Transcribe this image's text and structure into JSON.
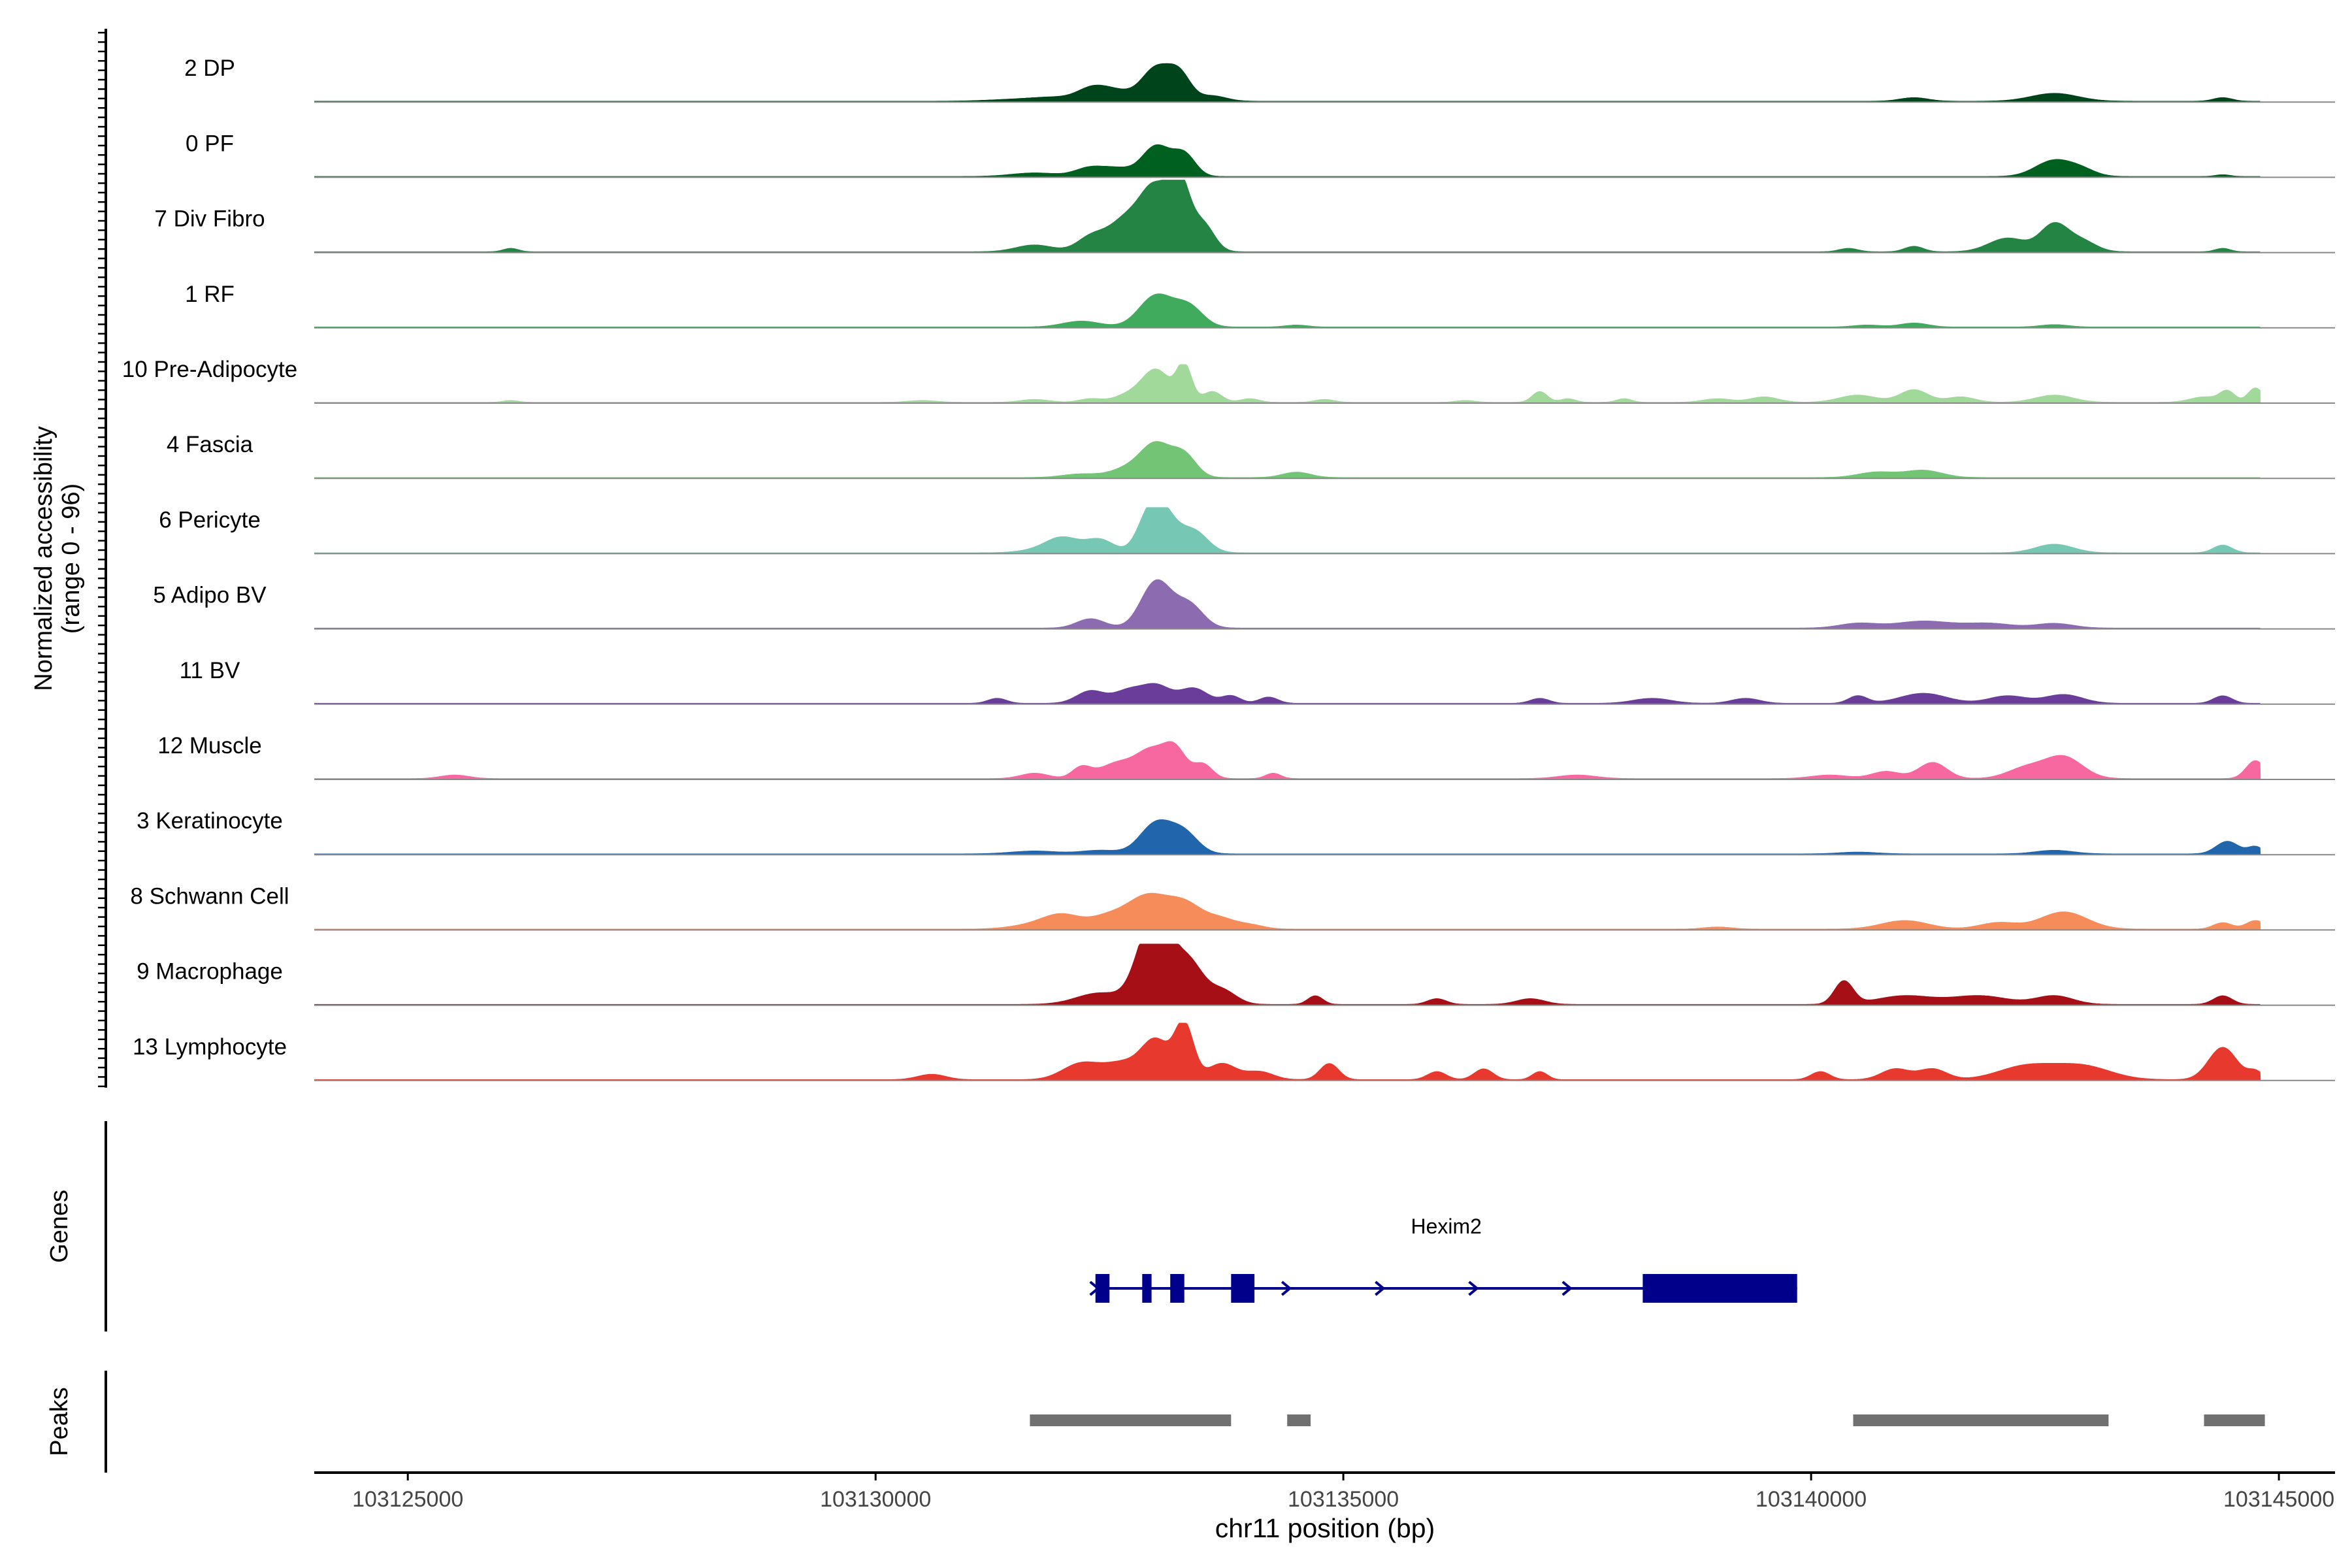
{
  "chart_data": {
    "type": "area",
    "title": "",
    "ylabel_line1": "Normalized accessibility",
    "ylabel_line2": "(range 0 - 96)",
    "y_range": [
      0,
      96
    ],
    "xlabel": "chr11 position (bp)",
    "x_range": [
      103124000,
      103145600
    ],
    "track_x_range": [
      103124000,
      103144800
    ],
    "x_ticks": [
      103125000,
      103130000,
      103135000,
      103140000,
      103145000
    ],
    "x_tick_labels": [
      "103125000",
      "103130000",
      "103135000",
      "103140000",
      "103145000"
    ],
    "series": [
      {
        "name": "2 DP",
        "color": "#00441b",
        "height": 0.5,
        "peaks": [
          [
            103131500,
            300,
            0.05
          ],
          [
            103131950,
            250,
            0.1
          ],
          [
            103132300,
            150,
            0.25
          ],
          [
            103132550,
            200,
            0.3
          ],
          [
            103133000,
            150,
            0.9
          ],
          [
            103133250,
            120,
            0.7
          ],
          [
            103133600,
            150,
            0.15
          ],
          [
            103141100,
            150,
            0.1
          ],
          [
            103142600,
            250,
            0.22
          ],
          [
            103144400,
            100,
            0.1
          ]
        ]
      },
      {
        "name": "0 PF",
        "color": "#00601f",
        "height": 0.5,
        "peaks": [
          [
            103131700,
            250,
            0.1
          ],
          [
            103132300,
            160,
            0.25
          ],
          [
            103132600,
            150,
            0.2
          ],
          [
            103133000,
            150,
            0.85
          ],
          [
            103133300,
            120,
            0.6
          ],
          [
            103142600,
            200,
            0.45
          ],
          [
            103142900,
            150,
            0.15
          ],
          [
            103144400,
            80,
            0.05
          ]
        ]
      },
      {
        "name": "7 Div Fibro",
        "color": "#238443",
        "height": 0.95,
        "peaks": [
          [
            103126100,
            80,
            0.05
          ],
          [
            103131700,
            200,
            0.1
          ],
          [
            103132300,
            150,
            0.2
          ],
          [
            103132700,
            200,
            0.5
          ],
          [
            103133000,
            150,
            0.8
          ],
          [
            103133250,
            110,
            0.95
          ],
          [
            103133500,
            120,
            0.4
          ],
          [
            103140400,
            100,
            0.05
          ],
          [
            103141100,
            100,
            0.08
          ],
          [
            103142100,
            200,
            0.2
          ],
          [
            103142600,
            150,
            0.4
          ],
          [
            103142900,
            150,
            0.15
          ],
          [
            103144400,
            80,
            0.05
          ]
        ]
      },
      {
        "name": "1 RF",
        "color": "#41ab5d",
        "height": 0.55,
        "peaks": [
          [
            103132200,
            200,
            0.15
          ],
          [
            103133000,
            180,
            0.8
          ],
          [
            103133350,
            150,
            0.5
          ],
          [
            103134500,
            120,
            0.05
          ],
          [
            103140600,
            150,
            0.05
          ],
          [
            103141100,
            150,
            0.1
          ],
          [
            103142600,
            150,
            0.06
          ]
        ]
      },
      {
        "name": "10 Pre-Adipocyte",
        "color": "#a1d99b",
        "height": 0.5,
        "peaks": [
          [
            103126100,
            80,
            0.05
          ],
          [
            103130500,
            150,
            0.05
          ],
          [
            103131700,
            150,
            0.08
          ],
          [
            103132300,
            120,
            0.1
          ],
          [
            103132700,
            150,
            0.2
          ],
          [
            103133000,
            150,
            0.9
          ],
          [
            103133300,
            80,
            1.0
          ],
          [
            103133600,
            100,
            0.3
          ],
          [
            103134000,
            100,
            0.1
          ],
          [
            103134800,
            100,
            0.08
          ],
          [
            103136300,
            100,
            0.05
          ],
          [
            103137100,
            80,
            0.3
          ],
          [
            103137400,
            80,
            0.1
          ],
          [
            103138000,
            80,
            0.1
          ],
          [
            103139000,
            150,
            0.1
          ],
          [
            103139500,
            150,
            0.15
          ],
          [
            103140500,
            200,
            0.2
          ],
          [
            103141100,
            150,
            0.35
          ],
          [
            103141600,
            150,
            0.15
          ],
          [
            103142600,
            200,
            0.2
          ],
          [
            103144200,
            150,
            0.15
          ],
          [
            103144450,
            80,
            0.3
          ],
          [
            103144750,
            80,
            0.4
          ]
        ]
      },
      {
        "name": "4 Fascia",
        "color": "#74c476",
        "height": 0.5,
        "peaks": [
          [
            103132200,
            200,
            0.1
          ],
          [
            103132700,
            180,
            0.25
          ],
          [
            103133000,
            160,
            0.9
          ],
          [
            103133300,
            130,
            0.6
          ],
          [
            103134500,
            150,
            0.15
          ],
          [
            103140700,
            200,
            0.15
          ],
          [
            103141200,
            200,
            0.2
          ]
        ]
      },
      {
        "name": "6 Pericyte",
        "color": "#76c8b4",
        "height": 0.6,
        "peaks": [
          [
            103131700,
            200,
            0.05
          ],
          [
            103132000,
            180,
            0.35
          ],
          [
            103132400,
            150,
            0.3
          ],
          [
            103132900,
            120,
            0.45
          ],
          [
            103133050,
            150,
            1.0
          ],
          [
            103133400,
            150,
            0.5
          ],
          [
            103142600,
            200,
            0.2
          ],
          [
            103144400,
            100,
            0.18
          ]
        ]
      },
      {
        "name": "5 Adipo BV",
        "color": "#8c6bb1",
        "height": 0.65,
        "peaks": [
          [
            103132300,
            150,
            0.2
          ],
          [
            103133000,
            160,
            1.0
          ],
          [
            103133350,
            150,
            0.5
          ],
          [
            103140500,
            200,
            0.1
          ],
          [
            103141200,
            300,
            0.15
          ],
          [
            103141900,
            250,
            0.1
          ],
          [
            103142600,
            200,
            0.1
          ]
        ]
      },
      {
        "name": "11 BV",
        "color": "#6a3d9a",
        "height": 0.35,
        "peaks": [
          [
            103131300,
            100,
            0.2
          ],
          [
            103132300,
            150,
            0.5
          ],
          [
            103132700,
            150,
            0.5
          ],
          [
            103133000,
            150,
            0.7
          ],
          [
            103133400,
            150,
            0.6
          ],
          [
            103133800,
            100,
            0.3
          ],
          [
            103134200,
            100,
            0.25
          ],
          [
            103137100,
            100,
            0.2
          ],
          [
            103138300,
            200,
            0.2
          ],
          [
            103139300,
            150,
            0.2
          ],
          [
            103140500,
            100,
            0.3
          ],
          [
            103141200,
            250,
            0.4
          ],
          [
            103142100,
            200,
            0.3
          ],
          [
            103142700,
            200,
            0.35
          ],
          [
            103144400,
            100,
            0.3
          ]
        ]
      },
      {
        "name": "12 Muscle",
        "color": "#f768a1",
        "height": 0.5,
        "peaks": [
          [
            103125500,
            150,
            0.1
          ],
          [
            103131700,
            150,
            0.15
          ],
          [
            103132200,
            100,
            0.3
          ],
          [
            103132600,
            200,
            0.45
          ],
          [
            103132950,
            150,
            0.7
          ],
          [
            103133200,
            120,
            0.8
          ],
          [
            103133500,
            100,
            0.4
          ],
          [
            103134250,
            80,
            0.15
          ],
          [
            103137500,
            200,
            0.1
          ],
          [
            103140200,
            200,
            0.1
          ],
          [
            103140800,
            150,
            0.2
          ],
          [
            103141300,
            150,
            0.45
          ],
          [
            103142300,
            200,
            0.3
          ],
          [
            103142700,
            200,
            0.6
          ],
          [
            103144750,
            100,
            0.5
          ]
        ]
      },
      {
        "name": "3 Keratinocyte",
        "color": "#2166ac",
        "height": 0.5,
        "peaks": [
          [
            103131700,
            250,
            0.08
          ],
          [
            103132400,
            200,
            0.1
          ],
          [
            103133000,
            170,
            0.85
          ],
          [
            103133300,
            150,
            0.55
          ],
          [
            103140500,
            200,
            0.05
          ],
          [
            103142600,
            200,
            0.1
          ],
          [
            103144450,
            120,
            0.35
          ],
          [
            103144750,
            80,
            0.2
          ]
        ]
      },
      {
        "name": "8 Schwann Cell",
        "color": "#f58c5a",
        "height": 0.6,
        "peaks": [
          [
            103131700,
            250,
            0.1
          ],
          [
            103132000,
            200,
            0.3
          ],
          [
            103132500,
            200,
            0.3
          ],
          [
            103132900,
            200,
            0.7
          ],
          [
            103133300,
            200,
            0.6
          ],
          [
            103133700,
            150,
            0.2
          ],
          [
            103134000,
            150,
            0.1
          ],
          [
            103139000,
            150,
            0.05
          ],
          [
            103141000,
            250,
            0.2
          ],
          [
            103142000,
            200,
            0.15
          ],
          [
            103142700,
            250,
            0.4
          ],
          [
            103144400,
            100,
            0.15
          ],
          [
            103144750,
            100,
            0.2
          ]
        ]
      },
      {
        "name": "9 Macrophage",
        "color": "#a50f15",
        "height": 0.8,
        "peaks": [
          [
            103132400,
            250,
            0.2
          ],
          [
            103132900,
            150,
            0.8
          ],
          [
            103133050,
            150,
            1.0
          ],
          [
            103133350,
            150,
            0.7
          ],
          [
            103133700,
            150,
            0.25
          ],
          [
            103134700,
            80,
            0.15
          ],
          [
            103136000,
            100,
            0.1
          ],
          [
            103137000,
            150,
            0.1
          ],
          [
            103140350,
            100,
            0.4
          ],
          [
            103141000,
            300,
            0.15
          ],
          [
            103141800,
            300,
            0.15
          ],
          [
            103142600,
            200,
            0.15
          ],
          [
            103144400,
            100,
            0.15
          ]
        ]
      },
      {
        "name": "13 Lymphocyte",
        "color": "#e8392e",
        "height": 0.75,
        "peaks": [
          [
            103130600,
            150,
            0.1
          ],
          [
            103132200,
            200,
            0.3
          ],
          [
            103132650,
            200,
            0.3
          ],
          [
            103133000,
            150,
            0.7
          ],
          [
            103133300,
            100,
            1.0
          ],
          [
            103133700,
            150,
            0.3
          ],
          [
            103134100,
            150,
            0.15
          ],
          [
            103134850,
            100,
            0.3
          ],
          [
            103136000,
            100,
            0.15
          ],
          [
            103136500,
            100,
            0.2
          ],
          [
            103137100,
            80,
            0.15
          ],
          [
            103140100,
            100,
            0.15
          ],
          [
            103140900,
            150,
            0.2
          ],
          [
            103141300,
            150,
            0.2
          ],
          [
            103142300,
            300,
            0.25
          ],
          [
            103142900,
            300,
            0.25
          ],
          [
            103144400,
            150,
            0.6
          ],
          [
            103144750,
            80,
            0.15
          ]
        ]
      }
    ],
    "genes_label": "Genes",
    "gene": {
      "name": "Hexim2",
      "color": "#00008b",
      "start": 103132350,
      "end": 103139850,
      "strand": "+",
      "exons": [
        [
          103132350,
          103132500
        ],
        [
          103132850,
          103132950
        ],
        [
          103133150,
          103133300
        ],
        [
          103133800,
          103134050
        ],
        [
          103138200,
          103139850
        ]
      ],
      "arrows": [
        103132350,
        103134400,
        103135400,
        103136400,
        103137400
      ]
    },
    "peaks_label": "Peaks",
    "peak_color": "#707070",
    "peak_regions": [
      [
        103131650,
        103133800
      ],
      [
        103134400,
        103134650
      ],
      [
        103140450,
        103143180
      ],
      [
        103144200,
        103144850
      ]
    ]
  }
}
